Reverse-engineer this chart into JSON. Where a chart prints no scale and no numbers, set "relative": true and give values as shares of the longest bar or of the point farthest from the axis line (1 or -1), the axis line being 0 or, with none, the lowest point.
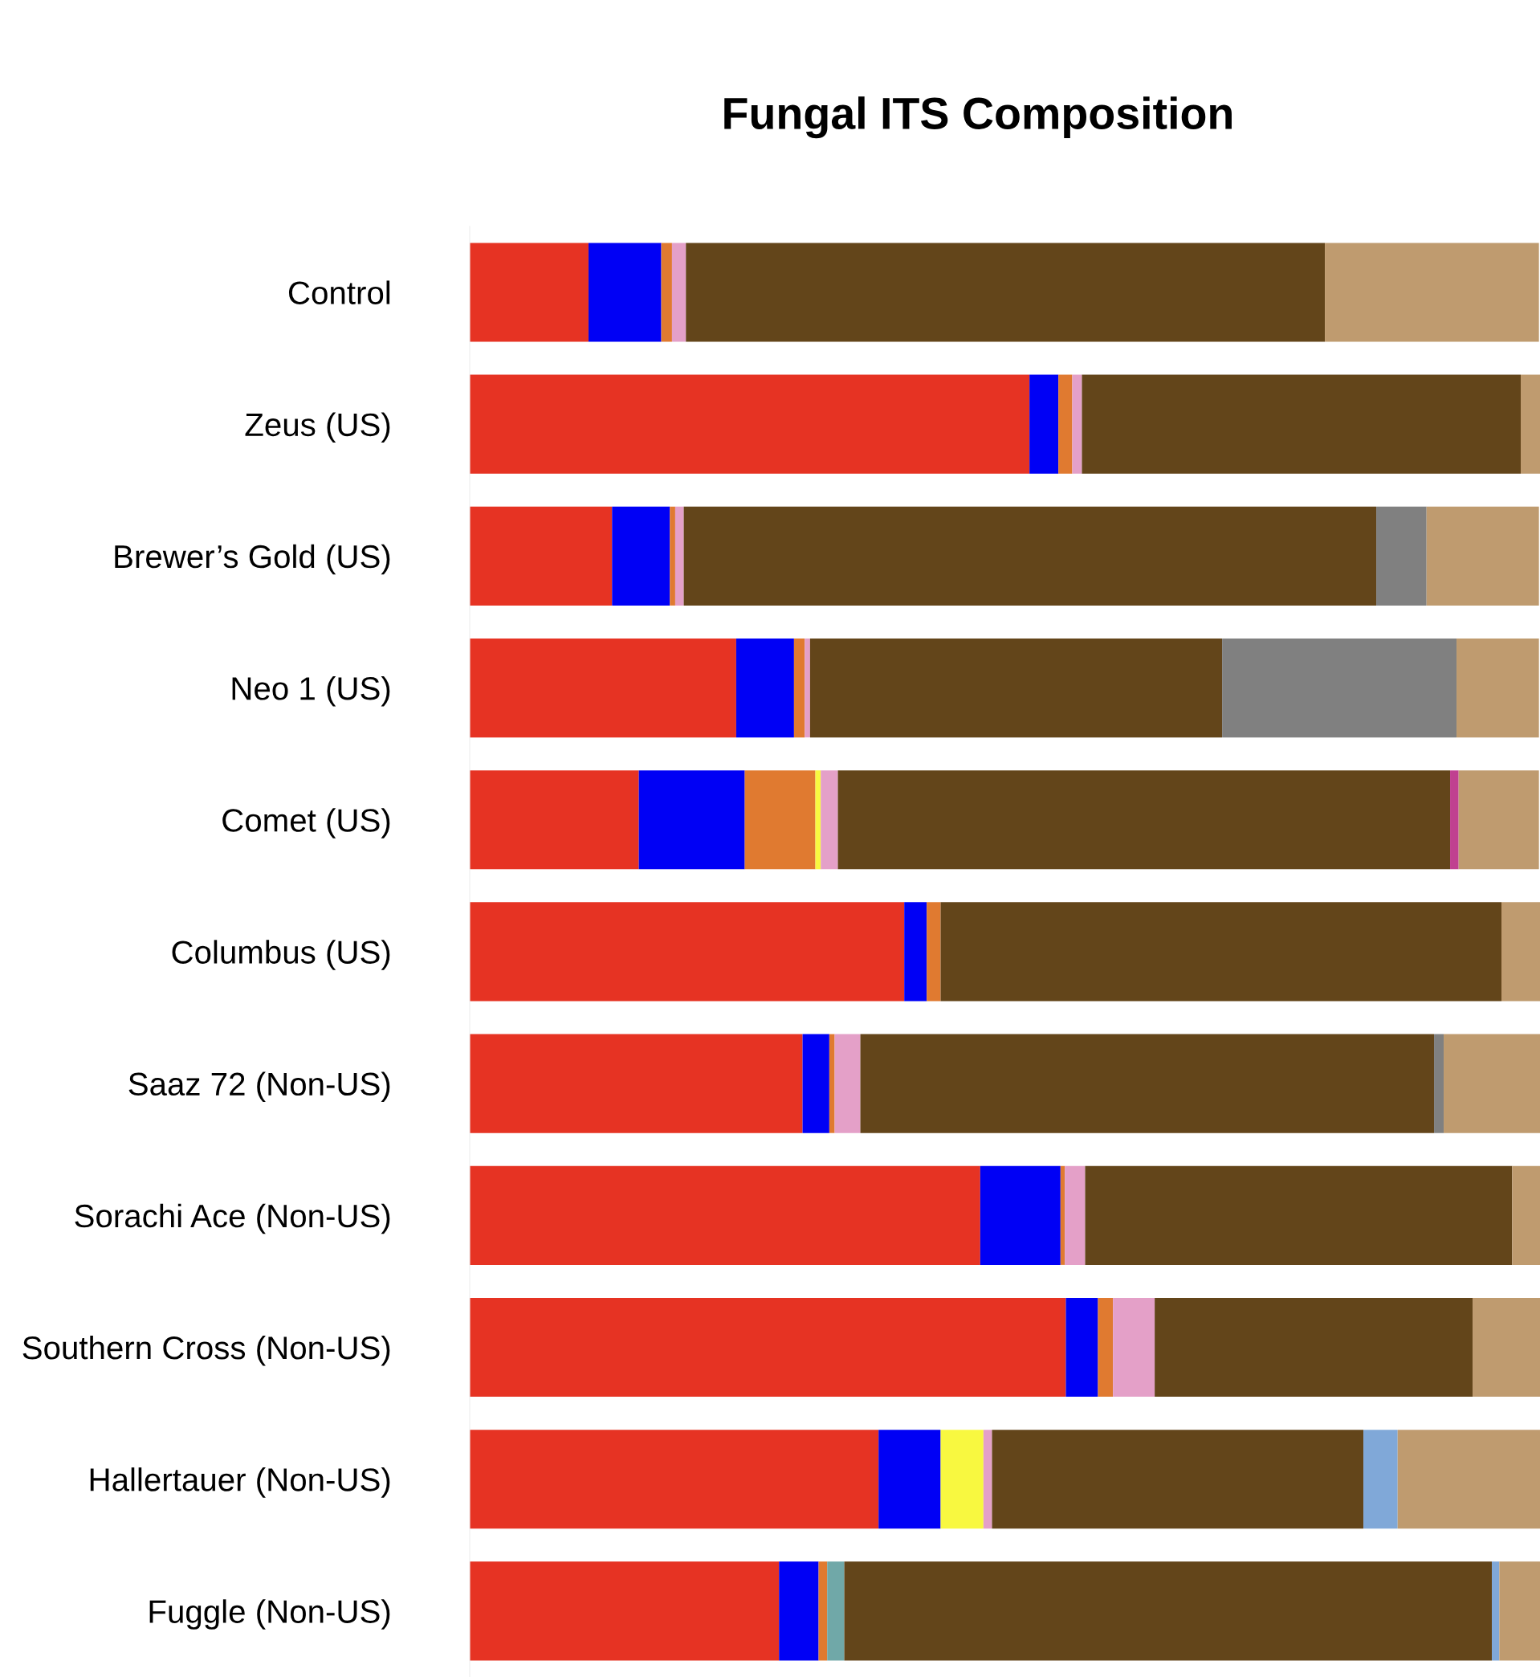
{
  "chart_data": {
    "type": "bar",
    "orientation": "horizontal",
    "stacked": true,
    "relative": true,
    "title": "Fungal ITS Composition",
    "categories": [
      "Control",
      "Zeus (US)",
      "Brewer’s Gold (US)",
      "Neo 1 (US)",
      "Comet (US)",
      "Columbus (US)",
      "Saaz 72 (Non-US)",
      "Sorachi Ace (Non-US)",
      "Southern Cross (Non-US)",
      "Hallertauer (Non-US)",
      "Fuggle (Non-US)"
    ],
    "grid": false,
    "legend": false,
    "series": [
      {
        "color": "#e63323",
        "values": [
          0.111,
          0.523,
          0.133,
          0.249,
          0.158,
          0.406,
          0.311,
          0.477,
          0.557,
          0.382,
          0.289
        ]
      },
      {
        "color": "#0000f5",
        "values": [
          0.068,
          0.027,
          0.054,
          0.054,
          0.099,
          0.021,
          0.025,
          0.075,
          0.03,
          0.058,
          0.037
        ]
      },
      {
        "color": "#e07a30",
        "values": [
          0.01,
          0.013,
          0.005,
          0.01,
          0.066,
          0.013,
          0.005,
          0.004,
          0.014,
          0,
          0.008
        ]
      },
      {
        "color": "#f8f840",
        "values": [
          0,
          0,
          0,
          0,
          0.005,
          0,
          0,
          0,
          0,
          0.04,
          0
        ]
      },
      {
        "color": "#e4a0c8",
        "values": [
          0.013,
          0.009,
          0.008,
          0.005,
          0.016,
          0,
          0.024,
          0.019,
          0.039,
          0.008,
          0
        ]
      },
      {
        "color": "#70a8a8",
        "values": [
          0,
          0,
          0,
          0,
          0,
          0,
          0,
          0,
          0,
          0,
          0.016
        ]
      },
      {
        "color": "#63451a",
        "values": [
          0.597,
          0.41,
          0.647,
          0.385,
          0.572,
          0.524,
          0.536,
          0.399,
          0.297,
          0.347,
          0.605
        ]
      },
      {
        "color": "#808080",
        "values": [
          0,
          0,
          0.047,
          0.219,
          0,
          0,
          0.009,
          0,
          0,
          0,
          0
        ]
      },
      {
        "color": "#c04090",
        "values": [
          0,
          0,
          0,
          0,
          0.008,
          0,
          0,
          0,
          0,
          0,
          0
        ]
      },
      {
        "color": "#80a8d8",
        "values": [
          0,
          0,
          0,
          0,
          0,
          0,
          0,
          0,
          0,
          0.032,
          0.007
        ]
      },
      {
        "color": "#bf9b6f",
        "values": [
          0.2,
          0.018,
          0.105,
          0.077,
          0.075,
          0.036,
          0.09,
          0.026,
          0.063,
          0.133,
          0.038
        ]
      }
    ]
  }
}
